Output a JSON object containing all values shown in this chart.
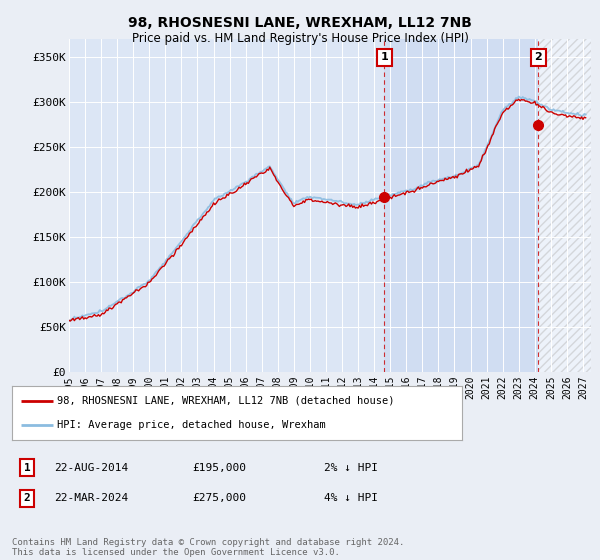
{
  "title": "98, RHOSNESNI LANE, WREXHAM, LL12 7NB",
  "subtitle": "Price paid vs. HM Land Registry's House Price Index (HPI)",
  "ylabel_ticks": [
    "£0",
    "£50K",
    "£100K",
    "£150K",
    "£200K",
    "£250K",
    "£300K",
    "£350K"
  ],
  "ytick_values": [
    0,
    50000,
    100000,
    150000,
    200000,
    250000,
    300000,
    350000
  ],
  "ylim": [
    0,
    370000
  ],
  "xlim_start": 1995.0,
  "xlim_end": 2027.5,
  "background_color": "#eaeef5",
  "plot_bg_color": "#dce6f5",
  "grid_color": "#ffffff",
  "hpi_color": "#8bbce0",
  "price_color": "#cc0000",
  "marker1_x": 2014.64,
  "marker1_y": 195000,
  "marker2_x": 2024.22,
  "marker2_y": 275000,
  "marker1_label": "1",
  "marker2_label": "2",
  "sale1_date": "22-AUG-2014",
  "sale1_price": "£195,000",
  "sale1_hpi": "2% ↓ HPI",
  "sale2_date": "22-MAR-2024",
  "sale2_price": "£275,000",
  "sale2_hpi": "4% ↓ HPI",
  "legend_label1": "98, RHOSNESNI LANE, WREXHAM, LL12 7NB (detached house)",
  "legend_label2": "HPI: Average price, detached house, Wrexham",
  "copyright_text": "Contains HM Land Registry data © Crown copyright and database right 2024.\nThis data is licensed under the Open Government Licence v3.0.",
  "xlabel_years": [
    1995,
    1996,
    1997,
    1998,
    1999,
    2000,
    2001,
    2002,
    2003,
    2004,
    2005,
    2006,
    2007,
    2008,
    2009,
    2010,
    2011,
    2012,
    2013,
    2014,
    2015,
    2016,
    2017,
    2018,
    2019,
    2020,
    2021,
    2022,
    2023,
    2024,
    2025,
    2026,
    2027
  ],
  "shade_start": 2014.64,
  "shade_end": 2024.22,
  "hatch_start": 2024.22
}
